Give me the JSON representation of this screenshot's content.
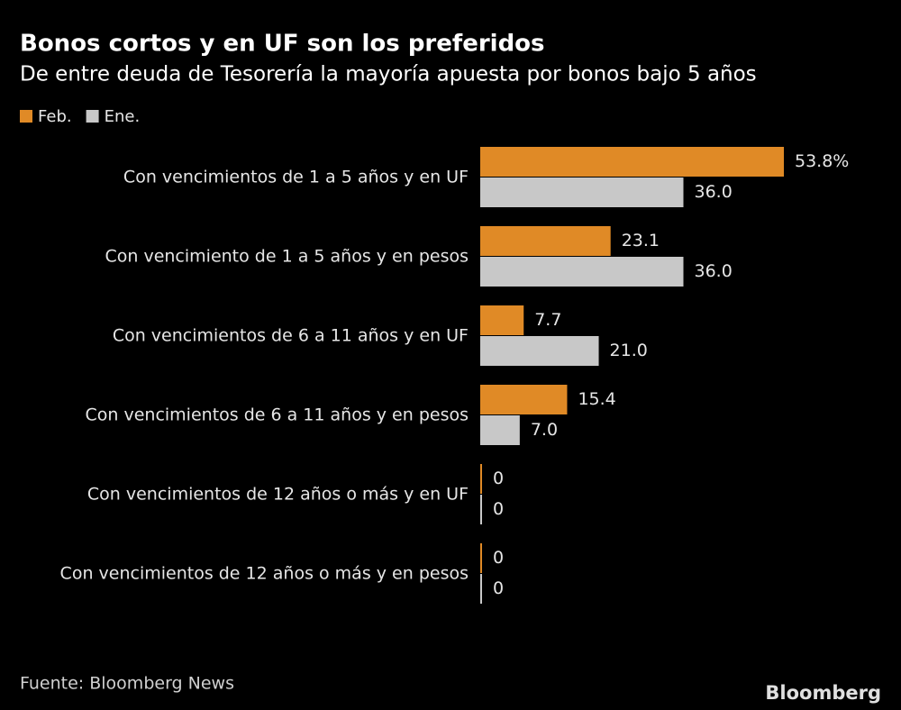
{
  "chart_data": {
    "type": "hbar",
    "title": "Bonos cortos y en UF son los preferidos",
    "subtitle": "De entre deuda de Tesorería la mayoría apuesta por bonos bajo 5 años",
    "categories": [
      "Con vencimientos de 1 a 5 años y en UF",
      "Con vencimiento de 1 a 5 años y en pesos",
      "Con vencimientos de 6 a 11 años y en UF",
      "Con vencimientos de 6 a 11 años y en pesos",
      "Con vencimientos de 12 años o más y en UF",
      "Con vencimientos de 12 años o más y en pesos"
    ],
    "series": [
      {
        "name": "Feb.",
        "color": "#e08a26",
        "values": [
          53.8,
          23.1,
          7.7,
          15.4,
          0,
          0
        ],
        "value_labels": [
          "53.8%",
          "23.1",
          "7.7",
          "15.4",
          "0",
          "0"
        ]
      },
      {
        "name": "Ene.",
        "color": "#c8c8c8",
        "values": [
          36.0,
          36.0,
          21.0,
          7.0,
          0,
          0
        ],
        "value_labels": [
          "36.0",
          "36.0",
          "21.0",
          "7.0",
          "0",
          "0"
        ]
      }
    ],
    "legend": "top-left",
    "source": "Fuente: Bloomberg News",
    "brand": "Bloomberg"
  }
}
